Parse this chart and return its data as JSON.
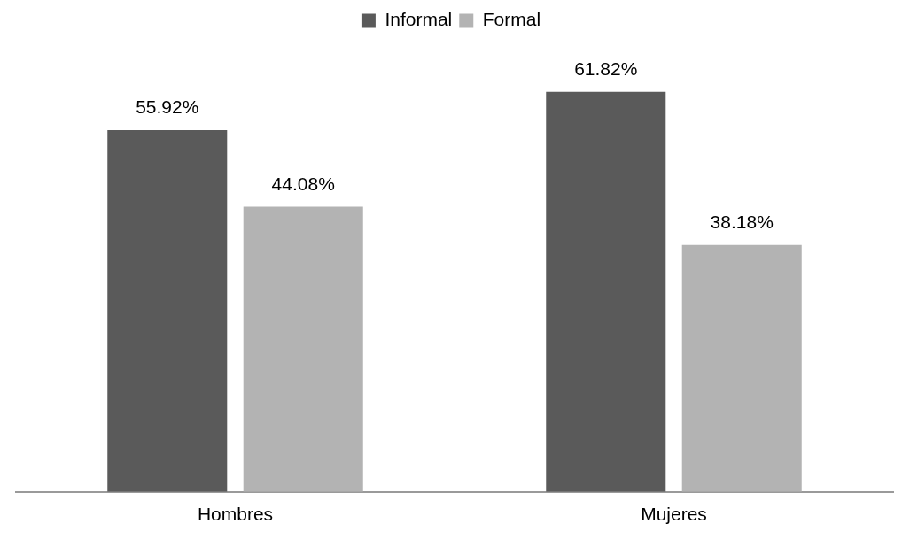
{
  "chart_data": {
    "type": "bar",
    "categories": [
      "Hombres",
      "Mujeres"
    ],
    "series": [
      {
        "name": "Informal",
        "color": "#5a5a5a",
        "values": [
          55.92,
          61.82
        ],
        "value_labels": [
          "55.92%",
          "61.82%"
        ]
      },
      {
        "name": "Formal",
        "color": "#b3b3b3",
        "values": [
          44.08,
          38.18
        ],
        "value_labels": [
          "44.08%",
          "38.18%"
        ]
      }
    ],
    "tick_labels": "x",
    "grid": false,
    "legend": "top"
  }
}
